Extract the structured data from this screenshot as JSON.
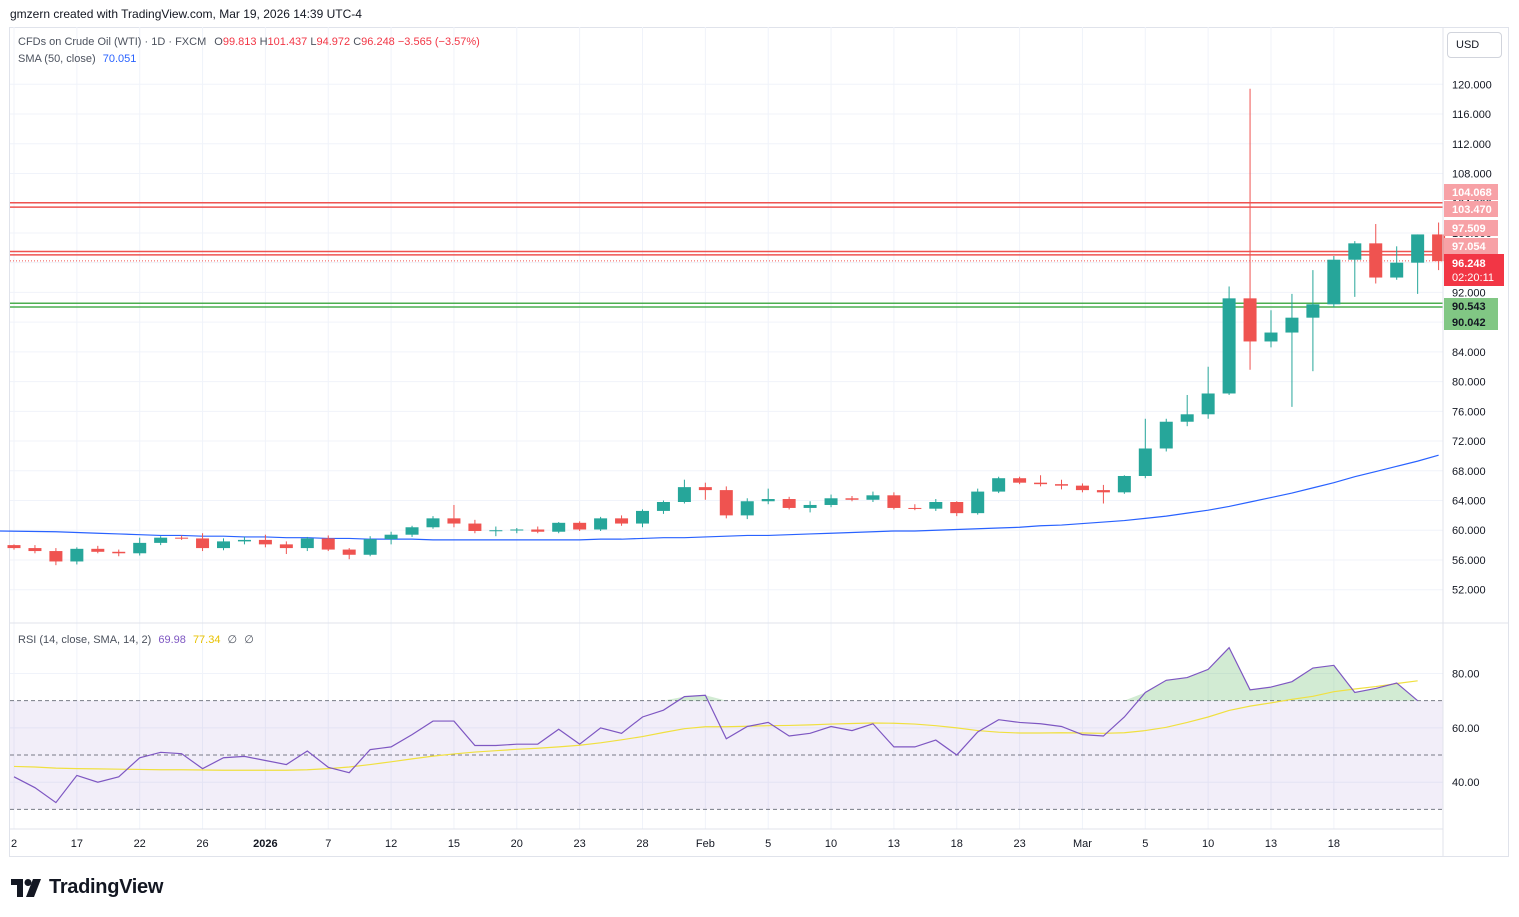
{
  "header": {
    "credit": "gmzern created with TradingView.com, Mar 19, 2026 14:39 UTC-4"
  },
  "currency": "USD",
  "main_legend": {
    "symbol": "CFDs on Crude Oil (WTI) · 1D · FXCM",
    "o_label": "O",
    "o": "99.813",
    "h_label": "H",
    "h": "101.437",
    "l_label": "L",
    "l": "94.972",
    "c_label": "C",
    "c": "96.248",
    "change": "−3.565 (−3.57%)"
  },
  "sma_legend": {
    "label": "SMA (50, close)",
    "value": "70.051"
  },
  "rsi_legend": {
    "label": "RSI (14, close, SMA, 14, 2)",
    "rsi": "69.98",
    "sma": "77.34",
    "extra1": "∅",
    "extra2": "∅"
  },
  "brand": {
    "name": "TradingView"
  },
  "colors": {
    "up": "#26a69a",
    "down": "#ef5350",
    "sma": "#2962ff",
    "rsi": "#7e57c2",
    "rsi_ma": "#f0e040",
    "resistance": "#ef5350",
    "support": "#4caf50"
  },
  "chart_data": [
    {
      "type": "candlestick",
      "y_ticks": [
        "52.000",
        "56.000",
        "60.000",
        "64.000",
        "68.000",
        "72.000",
        "76.000",
        "80.000",
        "84.000",
        "88.000",
        "92.000",
        "96.000",
        "100.000",
        "104.000",
        "108.000",
        "112.000",
        "116.000",
        "120.000"
      ],
      "ylim": [
        49,
        123
      ],
      "x_ticks": [
        "2",
        "17",
        "22",
        "26",
        "2026",
        "7",
        "12",
        "15",
        "20",
        "23",
        "28",
        "Feb",
        "5",
        "10",
        "13",
        "18",
        "23",
        "Mar",
        "5",
        "10",
        "13",
        "18"
      ],
      "x_tick_index": [
        0,
        3,
        6,
        9,
        12,
        15,
        18,
        21,
        24,
        27,
        30,
        33,
        36,
        39,
        42,
        45,
        48,
        51,
        54,
        57,
        60,
        63
      ],
      "candles": [
        [
          58.0,
          58.1,
          57.4,
          57.6
        ],
        [
          57.6,
          58.0,
          56.9,
          57.2
        ],
        [
          57.2,
          57.6,
          55.3,
          55.8
        ],
        [
          55.8,
          57.7,
          55.4,
          57.5
        ],
        [
          57.5,
          57.9,
          56.9,
          57.1
        ],
        [
          57.1,
          57.4,
          56.5,
          56.9
        ],
        [
          56.9,
          59.0,
          56.6,
          58.3
        ],
        [
          58.3,
          59.2,
          58.0,
          59.0
        ],
        [
          59.0,
          59.3,
          58.7,
          58.9
        ],
        [
          58.9,
          59.6,
          57.2,
          57.6
        ],
        [
          57.6,
          58.9,
          57.3,
          58.5
        ],
        [
          58.5,
          59.1,
          58.1,
          58.7
        ],
        [
          58.7,
          59.4,
          57.7,
          58.1
        ],
        [
          58.1,
          58.5,
          56.8,
          57.6
        ],
        [
          57.6,
          59.1,
          57.2,
          58.9
        ],
        [
          58.9,
          59.3,
          57.2,
          57.4
        ],
        [
          57.4,
          57.6,
          56.1,
          56.7
        ],
        [
          56.7,
          59.2,
          56.5,
          58.8
        ],
        [
          58.8,
          59.8,
          58.1,
          59.4
        ],
        [
          59.4,
          60.6,
          59.1,
          60.4
        ],
        [
          60.4,
          61.9,
          60.2,
          61.6
        ],
        [
          61.6,
          63.4,
          60.4,
          60.9
        ],
        [
          60.9,
          61.4,
          59.6,
          59.9
        ],
        [
          59.9,
          60.5,
          59.2,
          60.0
        ],
        [
          60.0,
          60.3,
          59.6,
          60.1
        ],
        [
          60.1,
          60.5,
          59.6,
          59.8
        ],
        [
          59.8,
          61.1,
          59.6,
          61.0
        ],
        [
          61.0,
          61.2,
          59.9,
          60.1
        ],
        [
          60.1,
          61.8,
          59.9,
          61.6
        ],
        [
          61.6,
          62.0,
          60.6,
          60.9
        ],
        [
          60.9,
          62.8,
          60.4,
          62.6
        ],
        [
          62.6,
          64.0,
          62.2,
          63.8
        ],
        [
          63.8,
          66.8,
          63.6,
          65.8
        ],
        [
          65.8,
          66.4,
          64.1,
          65.4
        ],
        [
          65.4,
          65.9,
          61.6,
          62.0
        ],
        [
          62.0,
          64.3,
          61.5,
          63.9
        ],
        [
          63.9,
          65.6,
          63.5,
          64.2
        ],
        [
          64.2,
          64.5,
          62.8,
          63.0
        ],
        [
          63.0,
          63.9,
          62.4,
          63.4
        ],
        [
          63.4,
          64.8,
          63.1,
          64.3
        ],
        [
          64.3,
          64.6,
          63.9,
          64.1
        ],
        [
          64.1,
          65.2,
          63.8,
          64.7
        ],
        [
          64.7,
          65.1,
          62.8,
          63.0
        ],
        [
          63.0,
          63.5,
          62.7,
          62.9
        ],
        [
          62.9,
          64.2,
          62.6,
          63.8
        ],
        [
          63.8,
          63.9,
          61.9,
          62.3
        ],
        [
          62.3,
          65.6,
          62.1,
          65.2
        ],
        [
          65.2,
          67.2,
          65.0,
          67.0
        ],
        [
          67.0,
          67.2,
          66.2,
          66.4
        ],
        [
          66.4,
          67.4,
          65.9,
          66.2
        ],
        [
          66.2,
          66.8,
          65.5,
          66.0
        ],
        [
          66.0,
          66.3,
          65.1,
          65.4
        ],
        [
          65.4,
          66.1,
          63.6,
          65.1
        ],
        [
          65.1,
          67.4,
          64.9,
          67.3
        ],
        [
          67.3,
          75.0,
          67.0,
          71.0
        ],
        [
          71.0,
          75.0,
          70.6,
          74.6
        ],
        [
          74.6,
          78.2,
          74.0,
          75.6
        ],
        [
          75.6,
          82.0,
          75.0,
          78.4
        ],
        [
          78.4,
          92.8,
          78.2,
          91.2
        ],
        [
          91.2,
          119.4,
          81.6,
          85.4
        ],
        [
          85.4,
          89.6,
          84.6,
          86.6
        ],
        [
          86.6,
          91.8,
          76.6,
          88.6
        ],
        [
          88.6,
          95.0,
          81.4,
          90.4
        ],
        [
          90.4,
          96.9,
          90.0,
          96.4
        ],
        [
          96.4,
          98.9,
          91.4,
          98.6
        ],
        [
          98.6,
          101.2,
          93.2,
          94.0
        ],
        [
          94.0,
          98.2,
          93.7,
          96.0
        ],
        [
          96.0,
          99.8,
          91.8,
          99.8
        ],
        [
          99.8,
          101.4,
          95.0,
          96.2
        ]
      ],
      "sma": [
        59.9,
        59.8,
        59.7,
        59.6,
        59.5,
        59.4,
        59.3,
        59.3,
        59.2,
        59.2,
        59.1,
        59.1,
        59.0,
        59.0,
        58.9,
        58.9,
        58.8,
        58.8,
        58.8,
        58.7,
        58.7,
        58.7,
        58.7,
        58.7,
        58.7,
        58.7,
        58.7,
        58.8,
        58.8,
        58.9,
        59.0,
        59.0,
        59.1,
        59.2,
        59.3,
        59.3,
        59.4,
        59.5,
        59.6,
        59.7,
        59.8,
        59.9,
        59.9,
        60.0,
        60.1,
        60.2,
        60.3,
        60.4,
        60.6,
        60.7,
        60.9,
        61.1,
        61.3,
        61.6,
        61.9,
        62.3,
        62.7,
        63.2,
        63.8,
        64.4,
        65.0,
        65.7,
        66.4,
        67.2,
        67.9,
        68.6,
        69.3,
        70.1
      ],
      "levels": [
        {
          "value": "104.068",
          "color": "red"
        },
        {
          "value": "103.470",
          "color": "red"
        },
        {
          "value": "97.509",
          "color": "red"
        },
        {
          "value": "97.054",
          "color": "red"
        },
        {
          "value": "90.543",
          "color": "green"
        },
        {
          "value": "90.042",
          "color": "green"
        }
      ],
      "last_price": "96.248",
      "countdown": "02:20:11"
    },
    {
      "type": "line",
      "title": "RSI",
      "y_ticks": [
        "40.00",
        "60.00",
        "80.00"
      ],
      "ylim": [
        25,
        96
      ],
      "bands": [
        30,
        50,
        70
      ],
      "rsi": [
        42.0,
        38.0,
        32.5,
        42.5,
        40.0,
        42.0,
        49.0,
        51.0,
        50.5,
        45.0,
        49.0,
        49.5,
        48.0,
        46.5,
        51.5,
        45.5,
        43.5,
        52.0,
        53.0,
        57.5,
        62.5,
        62.5,
        53.5,
        53.5,
        54.0,
        54.0,
        59.5,
        54.0,
        60.0,
        58.0,
        64.0,
        66.5,
        71.5,
        72.0,
        56.0,
        60.5,
        62.0,
        57.0,
        58.0,
        60.5,
        59.0,
        61.5,
        53.0,
        53.0,
        55.5,
        50.0,
        58.5,
        63.0,
        62.0,
        61.5,
        60.5,
        57.5,
        57.0,
        64.0,
        73.0,
        77.5,
        78.5,
        81.5,
        89.5,
        74.0,
        75.0,
        77.0,
        82.0,
        83.0,
        73.0,
        74.5,
        76.5,
        70.0
      ],
      "rsi_ma": [
        45.8,
        45.6,
        45.2,
        45.0,
        44.9,
        44.8,
        44.7,
        44.6,
        44.6,
        44.5,
        44.4,
        44.4,
        44.4,
        44.4,
        44.6,
        45.0,
        45.6,
        46.5,
        47.5,
        48.6,
        49.6,
        50.4,
        51.1,
        51.6,
        52.1,
        52.5,
        53.0,
        53.6,
        54.5,
        55.6,
        56.8,
        58.3,
        59.7,
        60.4,
        60.4,
        60.6,
        60.8,
        60.9,
        61.1,
        61.4,
        61.6,
        61.8,
        61.7,
        61.4,
        60.8,
        60.0,
        59.0,
        58.4,
        58.1,
        58.1,
        58.2,
        58.1,
        58.0,
        58.2,
        59.0,
        60.2,
        62.0,
        64.0,
        66.4,
        68.0,
        69.2,
        70.5,
        71.6,
        73.3,
        74.3,
        75.2,
        76.3,
        77.3
      ]
    }
  ]
}
